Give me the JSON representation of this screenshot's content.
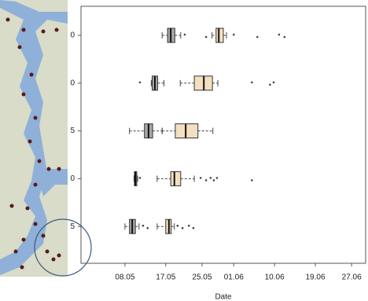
{
  "chart_data": {
    "type": "boxplot",
    "x_label": "Date",
    "categories": [
      "0",
      "0",
      "5",
      "0",
      "5"
    ],
    "xlim": [
      118.3,
      181.1
    ],
    "xticks": [
      {
        "value": 128,
        "label": "08.05"
      },
      {
        "value": 137,
        "label": "17.05"
      },
      {
        "value": 145,
        "label": "25.05"
      },
      {
        "value": 152,
        "label": "01.06"
      },
      {
        "value": 161,
        "label": "10.06"
      },
      {
        "value": 170,
        "label": "19.06"
      },
      {
        "value": 178,
        "label": "27.06"
      }
    ],
    "series": [
      {
        "color": "#a8a8a8",
        "boxes": [
          {
            "whislo": 136.2,
            "q1": 137.4,
            "med": 138.1,
            "q3": 139.0,
            "whishi": 140.3,
            "fliers": []
          },
          {
            "whislo": 133.8,
            "q1": 134.0,
            "med": 134.6,
            "q3": 135.2,
            "whishi": 136.6,
            "fliers": [
              131.3
            ]
          },
          {
            "whislo": 129.0,
            "q1": 132.3,
            "med": 133.2,
            "q3": 134.1,
            "whishi": 136.2,
            "fliers": []
          },
          {
            "whislo": 130.0,
            "q1": 130.1,
            "med": 130.3,
            "q3": 130.6,
            "whishi": 130.8,
            "fliers": [
              131.3
            ]
          },
          {
            "whislo": 128.0,
            "q1": 129.0,
            "med": 129.6,
            "q3": 130.3,
            "whishi": 131.1,
            "fliers": [
              132.0,
              133.0
            ]
          }
        ]
      },
      {
        "color": "#f3dfc1",
        "boxes": [
          {
            "whislo": 147.2,
            "q1": 148.1,
            "med": 148.7,
            "q3": 149.7,
            "whishi": 150.4,
            "fliers": [
              141.2,
              145.9,
              152.0,
              157.2,
              162.0,
              163.2
            ]
          },
          {
            "whislo": 140.2,
            "q1": 143.3,
            "med": 145.4,
            "q3": 147.3,
            "whishi": 148.5,
            "fliers": [
              156.0,
              160.0,
              160.8
            ]
          },
          {
            "whislo": 136.2,
            "q1": 139.1,
            "med": 141.4,
            "q3": 144.1,
            "whishi": 147.4,
            "fliers": []
          },
          {
            "whislo": 135.1,
            "q1": 138.1,
            "med": 138.9,
            "q3": 140.3,
            "whishi": 143.3,
            "fliers": [
              144.7,
              145.9,
              146.9,
              147.6,
              148.3,
              156.0
            ]
          },
          {
            "whislo": 135.1,
            "q1": 137.0,
            "med": 137.7,
            "q3": 138.2,
            "whishi": 138.9,
            "fliers": [
              139.6,
              140.7,
              142.1,
              143.1
            ]
          }
        ]
      }
    ]
  }
}
